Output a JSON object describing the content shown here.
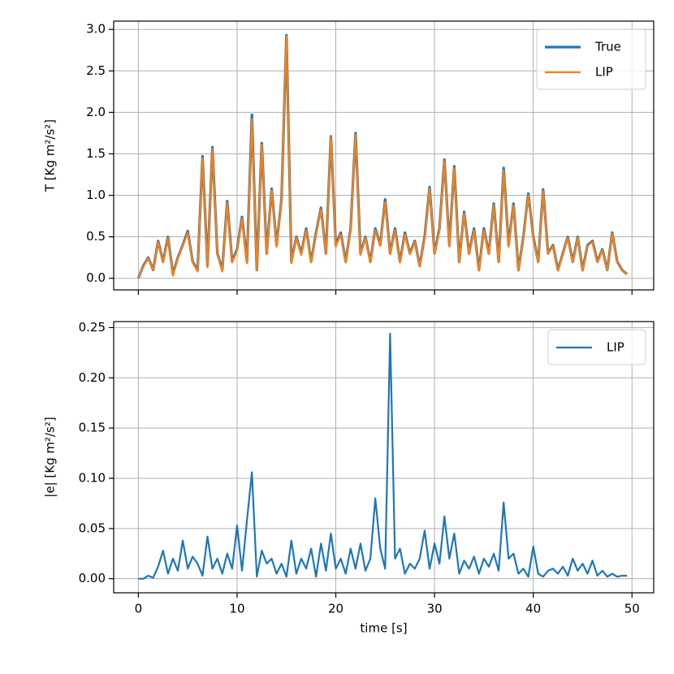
{
  "chart_data": [
    {
      "type": "line",
      "ylabel": "T [Kg m²/s²]",
      "x": [
        0,
        0.5,
        1,
        1.5,
        2,
        2.5,
        3,
        3.5,
        4,
        4.5,
        5,
        5.5,
        6,
        6.5,
        7,
        7.5,
        8,
        8.5,
        9,
        9.5,
        10,
        10.5,
        11,
        11.5,
        12,
        12.5,
        13,
        13.5,
        14,
        14.5,
        15,
        15.5,
        16,
        16.5,
        17,
        17.5,
        18,
        18.5,
        19,
        19.5,
        20,
        20.5,
        21,
        21.5,
        22,
        22.5,
        23,
        23.5,
        24,
        24.5,
        25,
        25.5,
        26,
        26.5,
        27,
        27.5,
        28,
        28.5,
        29,
        29.5,
        30,
        30.5,
        31,
        31.5,
        32,
        32.5,
        33,
        33.5,
        34,
        34.5,
        35,
        35.5,
        36,
        36.5,
        37,
        37.5,
        38,
        38.5,
        39,
        39.5,
        40,
        40.5,
        41,
        41.5,
        42,
        42.5,
        43,
        43.5,
        44,
        44.5,
        45,
        45.5,
        46,
        46.5,
        47,
        47.5,
        48,
        48.5,
        49,
        49.5
      ],
      "xlim": [
        -2.5,
        52.2
      ],
      "ylim": [
        -0.14,
        3.1
      ],
      "xticks": [
        0,
        10,
        20,
        30,
        40,
        50
      ],
      "yticks": [
        {
          "value": 0,
          "label": "0.0"
        },
        0.5,
        {
          "value": 1,
          "label": "1.0"
        },
        1.5,
        {
          "value": 2,
          "label": "2.0"
        },
        2.5,
        {
          "value": 3,
          "label": "3.0"
        }
      ],
      "grid": true,
      "legend": "upper right",
      "series": [
        {
          "name": "True",
          "color": "#1f77b4",
          "values": [
            0,
            0.15,
            0.25,
            0.1,
            0.45,
            0.2,
            0.5,
            0.05,
            0.25,
            0.4,
            0.57,
            0.2,
            0.1,
            1.47,
            0.15,
            1.58,
            0.3,
            0.1,
            0.93,
            0.2,
            0.35,
            0.74,
            0.2,
            1.97,
            0.1,
            1.63,
            0.3,
            1.08,
            0.4,
            0.95,
            2.93,
            0.2,
            0.5,
            0.3,
            0.6,
            0.2,
            0.55,
            0.85,
            0.3,
            1.71,
            0.4,
            0.55,
            0.2,
            0.6,
            1.75,
            0.3,
            0.5,
            0.2,
            0.6,
            0.4,
            0.95,
            0.3,
            0.6,
            0.2,
            0.55,
            0.3,
            0.45,
            0.15,
            0.5,
            1.1,
            0.3,
            0.6,
            1.43,
            0.4,
            1.35,
            0.2,
            0.8,
            0.3,
            0.6,
            0.1,
            0.6,
            0.3,
            0.9,
            0.2,
            1.33,
            0.4,
            0.9,
            0.1,
            0.5,
            1.02,
            0.5,
            0.2,
            1.07,
            0.3,
            0.4,
            0.1,
            0.3,
            0.5,
            0.2,
            0.5,
            0.1,
            0.4,
            0.45,
            0.2,
            0.35,
            0.1,
            0.55,
            0.2,
            0.1,
            0.05
          ]
        },
        {
          "name": "LIP",
          "color": "#ff7f0e",
          "values": [
            0,
            0.14,
            0.24,
            0.1,
            0.44,
            0.19,
            0.49,
            0.03,
            0.24,
            0.39,
            0.55,
            0.19,
            0.08,
            1.45,
            0.13,
            1.56,
            0.29,
            0.08,
            0.91,
            0.19,
            0.33,
            0.72,
            0.18,
            1.92,
            0.1,
            1.61,
            0.29,
            1.06,
            0.38,
            0.94,
            2.92,
            0.18,
            0.49,
            0.28,
            0.58,
            0.19,
            0.53,
            0.83,
            0.29,
            1.7,
            0.38,
            0.53,
            0.19,
            0.59,
            1.73,
            0.28,
            0.49,
            0.19,
            0.58,
            0.39,
            0.92,
            0.29,
            0.58,
            0.19,
            0.53,
            0.29,
            0.44,
            0.14,
            0.48,
            1.08,
            0.29,
            0.58,
            1.41,
            0.38,
            1.33,
            0.19,
            0.78,
            0.29,
            0.58,
            0.09,
            0.58,
            0.29,
            0.88,
            0.19,
            1.3,
            0.38,
            0.88,
            0.09,
            0.49,
            1.0,
            0.48,
            0.19,
            1.05,
            0.29,
            0.39,
            0.09,
            0.29,
            0.49,
            0.19,
            0.49,
            0.09,
            0.39,
            0.44,
            0.19,
            0.34,
            0.1,
            0.54,
            0.19,
            0.1,
            0.05
          ]
        }
      ]
    },
    {
      "type": "line",
      "ylabel": "|e| [Kg m²/s²]",
      "xlabel": "time [s]",
      "x": [
        0,
        0.5,
        1,
        1.5,
        2,
        2.5,
        3,
        3.5,
        4,
        4.5,
        5,
        5.5,
        6,
        6.5,
        7,
        7.5,
        8,
        8.5,
        9,
        9.5,
        10,
        10.5,
        11,
        11.5,
        12,
        12.5,
        13,
        13.5,
        14,
        14.5,
        15,
        15.5,
        16,
        16.5,
        17,
        17.5,
        18,
        18.5,
        19,
        19.5,
        20,
        20.5,
        21,
        21.5,
        22,
        22.5,
        23,
        23.5,
        24,
        24.5,
        25,
        25.5,
        26,
        26.5,
        27,
        27.5,
        28,
        28.5,
        29,
        29.5,
        30,
        30.5,
        31,
        31.5,
        32,
        32.5,
        33,
        33.5,
        34,
        34.5,
        35,
        35.5,
        36,
        36.5,
        37,
        37.5,
        38,
        38.5,
        39,
        39.5,
        40,
        40.5,
        41,
        41.5,
        42,
        42.5,
        43,
        43.5,
        44,
        44.5,
        45,
        45.5,
        46,
        46.5,
        47,
        47.5,
        48,
        48.5,
        49,
        49.5
      ],
      "xlim": [
        -2.5,
        52.2
      ],
      "ylim": [
        -0.014,
        0.256
      ],
      "xticks": [
        0,
        10,
        20,
        30,
        40,
        50
      ],
      "yticks": [
        {
          "value": 0,
          "label": "0.00"
        },
        0.05,
        {
          "value": 0.1,
          "label": "0.10"
        },
        0.15,
        {
          "value": 0.2,
          "label": "0.20"
        },
        0.25
      ],
      "grid": true,
      "legend": "upper right",
      "series": [
        {
          "name": "LIP",
          "color": "#1f77b4",
          "values": [
            0,
            0,
            0.003,
            0.001,
            0.012,
            0.028,
            0.005,
            0.02,
            0.008,
            0.038,
            0.01,
            0.022,
            0.015,
            0.003,
            0.042,
            0.01,
            0.02,
            0.005,
            0.025,
            0.01,
            0.053,
            0.008,
            0.058,
            0.106,
            0.002,
            0.028,
            0.015,
            0.02,
            0.005,
            0.015,
            0.002,
            0.038,
            0.005,
            0.02,
            0.01,
            0.03,
            0.002,
            0.035,
            0.008,
            0.045,
            0.01,
            0.02,
            0.005,
            0.03,
            0.01,
            0.035,
            0.008,
            0.02,
            0.08,
            0.03,
            0.01,
            0.244,
            0.02,
            0.03,
            0.005,
            0.015,
            0.01,
            0.02,
            0.048,
            0.01,
            0.035,
            0.015,
            0.062,
            0.02,
            0.045,
            0.005,
            0.018,
            0.01,
            0.022,
            0.005,
            0.02,
            0.012,
            0.025,
            0.008,
            0.076,
            0.02,
            0.025,
            0.005,
            0.01,
            0.002,
            0.032,
            0.005,
            0.002,
            0.008,
            0.01,
            0.005,
            0.012,
            0.003,
            0.02,
            0.008,
            0.015,
            0.005,
            0.018,
            0.003,
            0.008,
            0.002,
            0.005,
            0.002,
            0.003,
            0.003
          ]
        }
      ]
    }
  ]
}
